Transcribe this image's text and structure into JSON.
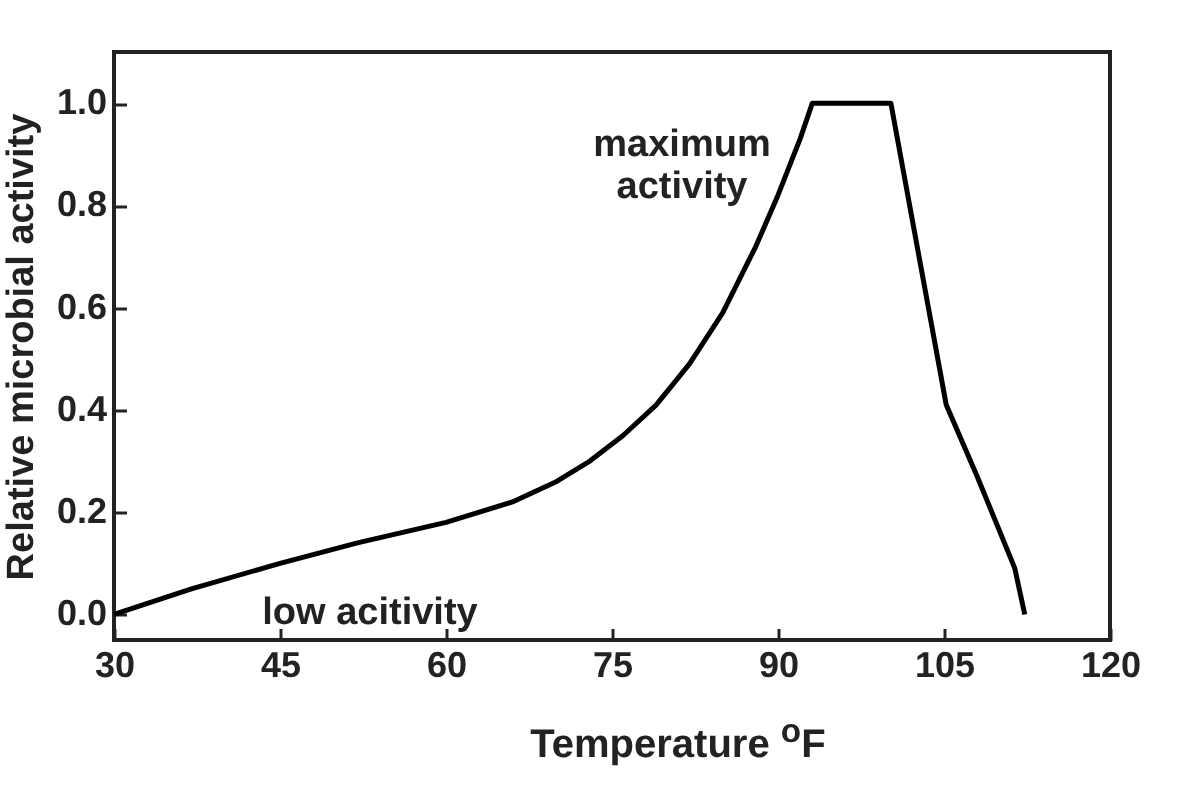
{
  "chart_data": {
    "type": "line",
    "xlabel": "Temperature $^{o}$F",
    "ylabel": "Relative microbial activity",
    "x": [
      30,
      37,
      45,
      52,
      60,
      66,
      70,
      73,
      76,
      79,
      82,
      85,
      88,
      90,
      92,
      93.1,
      100.2,
      105.2,
      108,
      111.4,
      112.3
    ],
    "series": [
      {
        "color": "#000000",
        "values": [
          0,
          0.05,
          0.1,
          0.14,
          0.18,
          0.22,
          0.26,
          0.3,
          0.35,
          0.41,
          0.49,
          0.59,
          0.72,
          0.82,
          0.93,
          1.0,
          1.0,
          0.41,
          0.27,
          0.09,
          0
        ]
      }
    ],
    "xlim": [
      30,
      120
    ],
    "xticks": [
      30,
      45,
      60,
      75,
      90,
      105,
      120
    ],
    "ylim": [
      -0.05,
      1.1
    ],
    "yticks": [
      {
        "value": 0,
        "label": "0.0"
      },
      0.2,
      0.4,
      0.6,
      0.8,
      {
        "value": 1,
        "label": "1.0"
      }
    ],
    "annotations": [
      "maximum\nactivity",
      "low acitivity"
    ],
    "marker": "none",
    "line_style": "solid"
  }
}
